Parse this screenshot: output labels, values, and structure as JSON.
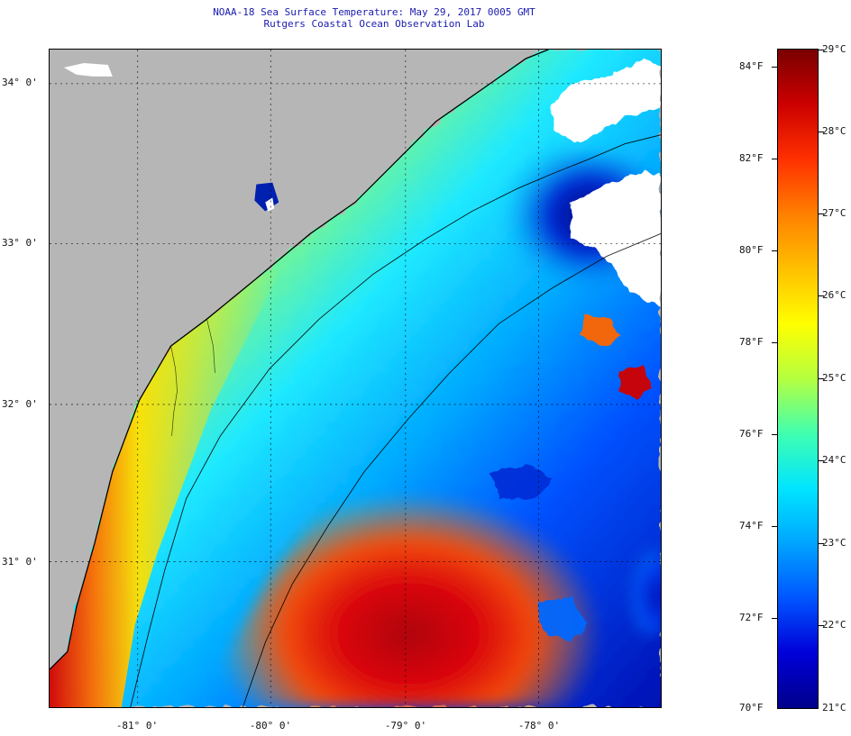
{
  "title": {
    "line1": "NOAA-18 Sea Surface Temperature:  May 29, 2017 0005 GMT",
    "line2": "Rutgers Coastal Ocean Observation Lab"
  },
  "map": {
    "latitude_labels": [
      {
        "label": "34° 0'",
        "value": 34
      },
      {
        "label": "33° 0'",
        "value": 33
      },
      {
        "label": "32° 0'",
        "value": 32
      },
      {
        "label": "31° 0'",
        "value": 31
      }
    ],
    "longitude_labels": [
      {
        "label": "-81° 0'",
        "value": -81
      },
      {
        "label": "-80° 0'",
        "value": -80
      },
      {
        "label": "-79° 0'",
        "value": -79
      },
      {
        "label": "-78° 0'",
        "value": -78
      }
    ],
    "colors": {
      "land": "#b6b6b6",
      "cloud": "#ffffff",
      "coastline": "#000000"
    }
  },
  "colorbar": {
    "fahrenheit_ticks": [
      "84°F",
      "82°F",
      "80°F",
      "78°F",
      "76°F",
      "74°F",
      "72°F",
      "70°F"
    ],
    "celsius_ticks": [
      "29°C",
      "28°C",
      "27°C",
      "26°C",
      "25°C",
      "24°C",
      "23°C",
      "22°C",
      "21°C"
    ],
    "range_fahrenheit": [
      70,
      84
    ],
    "range_celsius": [
      21,
      29
    ],
    "gradient": [
      "#00008b",
      "#0000d8",
      "#0055ff",
      "#00a5ff",
      "#00e5ff",
      "#40ffb0",
      "#b5ff40",
      "#ffff00",
      "#ffc000",
      "#ff8000",
      "#ff3000",
      "#cc0000",
      "#7a0000"
    ]
  }
}
